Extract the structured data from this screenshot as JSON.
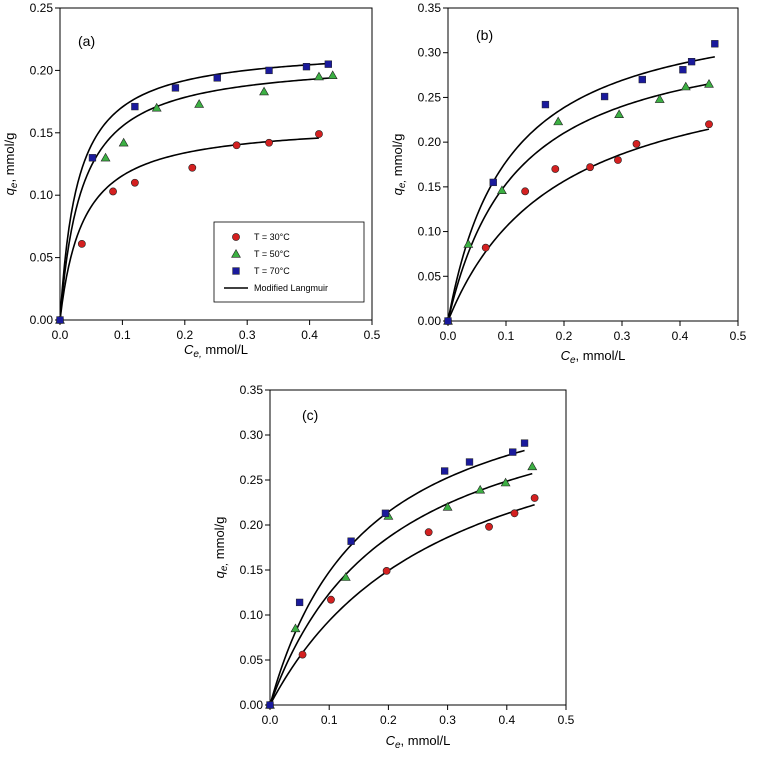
{
  "chart_data": [
    {
      "type": "scatter",
      "panel_label": "(a)",
      "xlabel_sym": "C",
      "xlabel_sub": "e,",
      "xlabel_unit": "  mmol/L",
      "ylabel_sym": "q",
      "ylabel_sub": "e",
      "ylabel_unit": ", mmol/g",
      "xlim": [
        0,
        0.5
      ],
      "ylim": [
        0,
        0.25
      ],
      "xticks": [
        "0.0",
        "0.1",
        "0.2",
        "0.3",
        "0.4",
        "0.5"
      ],
      "yticks": [
        "0.00",
        "0.05",
        "0.10",
        "0.15",
        "0.20",
        "0.25"
      ],
      "legend": true,
      "series": [
        {
          "name": "T = 30°C",
          "marker": "circle",
          "color": "#d42020",
          "x": [
            0,
            0.035,
            0.085,
            0.12,
            0.212,
            0.283,
            0.335,
            0.415
          ],
          "y": [
            0,
            0.061,
            0.103,
            0.11,
            0.122,
            0.14,
            0.142,
            0.149
          ],
          "fit": [
            0.159,
            0.0375
          ]
        },
        {
          "name": "T = 50°C",
          "marker": "triangle",
          "color": "#3cb043",
          "x": [
            0,
            0.073,
            0.102,
            0.155,
            0.223,
            0.327,
            0.415,
            0.437
          ],
          "y": [
            0,
            0.13,
            0.142,
            0.17,
            0.173,
            0.183,
            0.195,
            0.196
          ],
          "fit": [
            0.2096,
            0.035
          ]
        },
        {
          "name": "T = 70°C",
          "marker": "square",
          "color": "#1a1a9c",
          "x": [
            0,
            0.052,
            0.12,
            0.185,
            0.252,
            0.335,
            0.395,
            0.43
          ],
          "y": [
            0,
            0.13,
            0.171,
            0.186,
            0.194,
            0.2,
            0.203,
            0.205
          ],
          "fit": [
            0.219,
            0.0283
          ]
        }
      ],
      "fit_name": "Modified Langmuir"
    },
    {
      "type": "scatter",
      "panel_label": "(b)",
      "xlabel_sym": "C",
      "xlabel_sub": "e",
      "xlabel_unit": ", mmol/L",
      "ylabel_sym": "q",
      "ylabel_sub": "e,",
      "ylabel_unit": " mmol/g",
      "xlim": [
        0,
        0.5
      ],
      "ylim": [
        0,
        0.35
      ],
      "xticks": [
        "0.0",
        "0.1",
        "0.2",
        "0.3",
        "0.4",
        "0.5"
      ],
      "yticks": [
        "0.00",
        "0.05",
        "0.10",
        "0.15",
        "0.20",
        "0.25",
        "0.30",
        "0.35"
      ],
      "legend": false,
      "series": [
        {
          "name": "T = 30°C",
          "marker": "circle",
          "color": "#d42020",
          "x": [
            0,
            0.065,
            0.133,
            0.185,
            0.245,
            0.293,
            0.325,
            0.45
          ],
          "y": [
            0,
            0.082,
            0.145,
            0.17,
            0.172,
            0.18,
            0.198,
            0.22
          ],
          "fit": [
            0.3054,
            0.1906
          ]
        },
        {
          "name": "T = 50°C",
          "marker": "triangle",
          "color": "#3cb043",
          "x": [
            0,
            0.035,
            0.093,
            0.19,
            0.295,
            0.365,
            0.41,
            0.45
          ],
          "y": [
            0,
            0.086,
            0.146,
            0.223,
            0.231,
            0.248,
            0.262,
            0.265
          ],
          "fit": [
            0.335,
            0.1188
          ]
        },
        {
          "name": "T = 70°C",
          "marker": "square",
          "color": "#1a1a9c",
          "x": [
            0,
            0.078,
            0.168,
            0.27,
            0.335,
            0.405,
            0.42,
            0.46
          ],
          "y": [
            0,
            0.155,
            0.242,
            0.251,
            0.27,
            0.281,
            0.29,
            0.31
          ],
          "fit": [
            0.3616,
            0.1031
          ]
        }
      ],
      "fit_name": "Modified Langmuir"
    },
    {
      "type": "scatter",
      "panel_label": "(c)",
      "xlabel_sym": "C",
      "xlabel_sub": "e",
      "xlabel_unit": ", mmol/L",
      "ylabel_sym": "q",
      "ylabel_sub": "e,",
      "ylabel_unit": " mmol/g",
      "xlim": [
        0,
        0.5
      ],
      "ylim": [
        0,
        0.35
      ],
      "xticks": [
        "0.0",
        "0.1",
        "0.2",
        "0.3",
        "0.4",
        "0.5"
      ],
      "yticks": [
        "0.00",
        "0.05",
        "0.10",
        "0.15",
        "0.20",
        "0.25",
        "0.30",
        "0.35"
      ],
      "legend": false,
      "series": [
        {
          "name": "T = 30°C",
          "marker": "circle",
          "color": "#d42020",
          "x": [
            0,
            0.055,
            0.103,
            0.197,
            0.268,
            0.37,
            0.413,
            0.447
          ],
          "y": [
            0,
            0.056,
            0.117,
            0.149,
            0.192,
            0.198,
            0.213,
            0.23
          ],
          "fit": [
            0.3689,
            0.2941
          ]
        },
        {
          "name": "T = 50°C",
          "marker": "triangle",
          "color": "#3cb043",
          "x": [
            0,
            0.043,
            0.128,
            0.2,
            0.3,
            0.355,
            0.398,
            0.443
          ],
          "y": [
            0,
            0.085,
            0.142,
            0.21,
            0.22,
            0.239,
            0.247,
            0.265
          ],
          "fit": [
            0.3745,
            0.2024
          ]
        },
        {
          "name": "T = 70°C",
          "marker": "square",
          "color": "#1a1a9c",
          "x": [
            0,
            0.05,
            0.137,
            0.195,
            0.295,
            0.337,
            0.41,
            0.43
          ],
          "y": [
            0,
            0.114,
            0.182,
            0.213,
            0.26,
            0.27,
            0.281,
            0.291
          ],
          "fit": [
            0.3907,
            0.1641
          ]
        }
      ],
      "fit_name": "Modified Langmuir"
    }
  ]
}
